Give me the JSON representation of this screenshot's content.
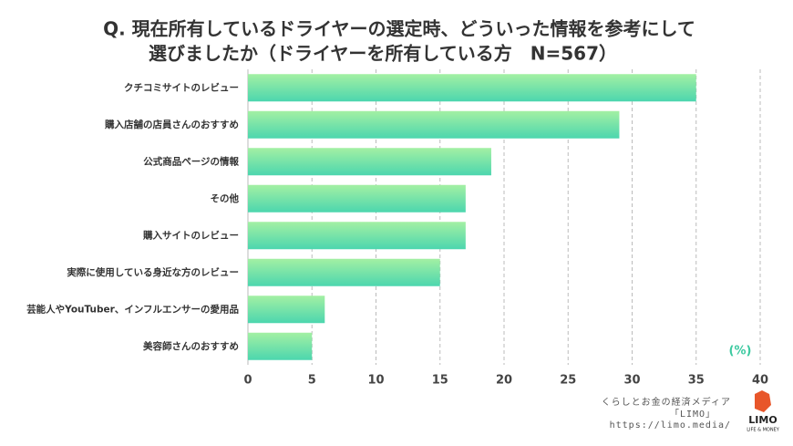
{
  "chart_data": {
    "type": "hbar",
    "title": [
      "Q. 現在所有しているドライヤーの選定時、どういった情報を参考にして",
      "選びましたか（ドライヤーを所有している方　N=567）"
    ],
    "categories": [
      "クチコミサイトのレビュー",
      "購入店舗の店員さんのおすすめ",
      "公式商品ページの情報",
      "その他",
      "購入サイトのレビュー",
      "実際に使用している身近な方のレビュー",
      "芸能人やYouTuber、インフルエンサーの愛用品",
      "美容師さんのおすすめ"
    ],
    "values": [
      35,
      29,
      19,
      17,
      17,
      15,
      6,
      5
    ],
    "gradient": [
      "#a3f0a3",
      "#4cd6ae"
    ],
    "xlim": [
      0,
      40
    ],
    "xticks": [
      0,
      5,
      10,
      15,
      20,
      25,
      30,
      35,
      40
    ],
    "grid": true,
    "unit_label": "(%)"
  },
  "footer": {
    "tagline": "くらしとお金の経済メディア",
    "brand": "「LIMO」",
    "url": "https://limo.media/",
    "logo": "LIMO",
    "logo_sub": "LIFE & MONEY"
  }
}
